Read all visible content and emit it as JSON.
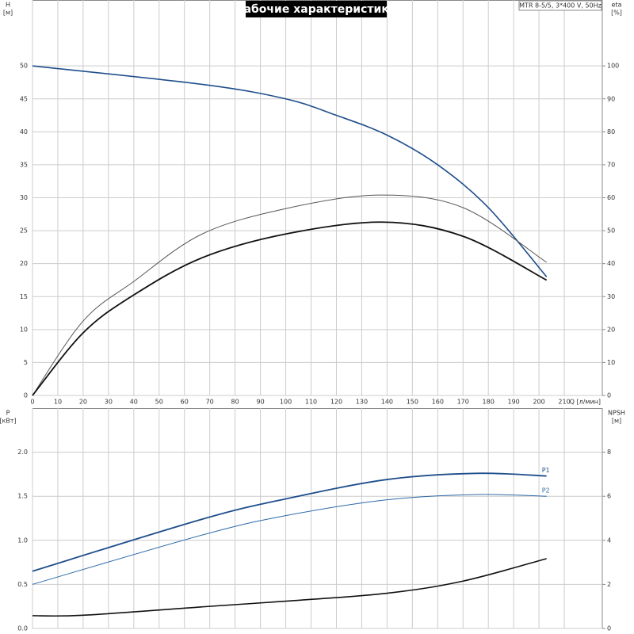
{
  "header": {
    "title": "Рабочие характеристики",
    "info": "MTR 8-5/5, 3*400 V, 50Hz"
  },
  "chart_data": [
    {
      "type": "line",
      "xlabel": "Q [л/мин]",
      "ylabel": [
        "H",
        "[м]"
      ],
      "y2label": [
        "eta",
        "[%]"
      ],
      "xlim": [
        0,
        225
      ],
      "xticks": [
        0,
        10,
        20,
        30,
        40,
        50,
        60,
        70,
        80,
        90,
        100,
        110,
        120,
        130,
        140,
        150,
        160,
        170,
        180,
        190,
        200,
        210
      ],
      "xtick_labels": true,
      "ylim": [
        0,
        60
      ],
      "yticks": [
        0,
        5,
        10,
        15,
        20,
        25,
        30,
        35,
        40,
        45,
        50
      ],
      "y2lim": [
        0,
        120
      ],
      "y2ticks": [
        0,
        10,
        20,
        30,
        40,
        50,
        60,
        70,
        80,
        90,
        100
      ],
      "grid": true,
      "series": [
        {
          "color": "#1f4e8c",
          "line_width": 1.6,
          "x": [
            0,
            67,
            100,
            120,
            140,
            160,
            180,
            203
          ],
          "values": [
            50,
            47.2,
            45,
            42.5,
            39.5,
            35,
            28.5,
            18
          ]
        },
        {
          "color": "#555555",
          "line_width": 1,
          "axis": "y2",
          "x": [
            0,
            20,
            40,
            67,
            100,
            137,
            170,
            203
          ],
          "values": [
            0,
            22.6,
            34.6,
            49,
            56.7,
            60.8,
            57,
            40.4
          ]
        },
        {
          "color": "#111111",
          "line_width": 1.8,
          "axis": "y2",
          "x": [
            0,
            20,
            40,
            67,
            100,
            138,
            170,
            203
          ],
          "values": [
            0,
            19,
            30.5,
            41.8,
            49,
            52.6,
            48.3,
            35
          ]
        }
      ]
    },
    {
      "type": "line",
      "ylabel": [
        "P",
        "[кВт]"
      ],
      "y2label": [
        "NPSH",
        "[м]"
      ],
      "xlim": [
        0,
        225
      ],
      "xticks": [
        0,
        10,
        20,
        30,
        40,
        50,
        60,
        70,
        80,
        90,
        100,
        110,
        120,
        130,
        140,
        150,
        160,
        170,
        180,
        190,
        200,
        210
      ],
      "xtick_labels": false,
      "ylim": [
        0,
        2.5
      ],
      "yticks": [
        {
          "value": 0,
          "label": "0.0"
        },
        0.5,
        {
          "value": 1,
          "label": "1.0"
        },
        1.5,
        {
          "value": 2,
          "label": "2.0"
        }
      ],
      "y2lim": [
        0,
        10
      ],
      "y2ticks": [
        0,
        2,
        4,
        6,
        8
      ],
      "grid": true,
      "series": [
        {
          "name": "P1",
          "color": "#1f4e8c",
          "line_width": 1.8,
          "x": [
            0,
            67,
            100,
            140,
            175,
            203
          ],
          "values": [
            0.65,
            1.24,
            1.47,
            1.69,
            1.76,
            1.73
          ]
        },
        {
          "name": "P2",
          "color": "#2e6aa8",
          "line_width": 1,
          "x": [
            0,
            67,
            100,
            140,
            175,
            203
          ],
          "values": [
            0.5,
            1.06,
            1.28,
            1.46,
            1.52,
            1.5
          ]
        },
        {
          "color": "#111111",
          "line_width": 1.6,
          "axis": "y2",
          "x": [
            0,
            20,
            67,
            100,
            140,
            170,
            203
          ],
          "values": [
            0.58,
            0.6,
            0.98,
            1.24,
            1.6,
            2.15,
            3.17
          ]
        }
      ]
    }
  ]
}
